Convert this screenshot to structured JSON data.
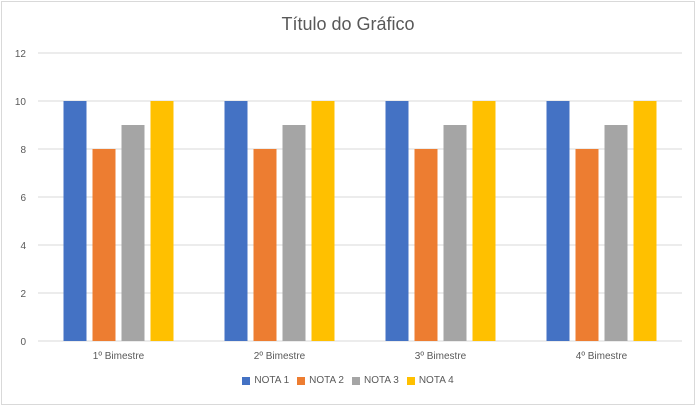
{
  "chart_data": {
    "type": "bar",
    "title": "Título do Gráfico",
    "categories": [
      "1º Bimestre",
      "2º Bimestre",
      "3º Bimestre",
      "4º Bimestre"
    ],
    "series": [
      {
        "name": "NOTA 1",
        "color": "#4472C4",
        "values": [
          10,
          10,
          10,
          10
        ]
      },
      {
        "name": "NOTA 2",
        "color": "#ED7D31",
        "values": [
          8,
          8,
          8,
          8
        ]
      },
      {
        "name": "NOTA 3",
        "color": "#A5A5A5",
        "values": [
          9,
          9,
          9,
          9
        ]
      },
      {
        "name": "NOTA 4",
        "color": "#FFC000",
        "values": [
          10,
          10,
          10,
          10
        ]
      }
    ],
    "ylim": [
      0,
      12
    ],
    "yticks": [
      0,
      2,
      4,
      6,
      8,
      10,
      12
    ],
    "grid": true,
    "legend_position": "bottom"
  }
}
